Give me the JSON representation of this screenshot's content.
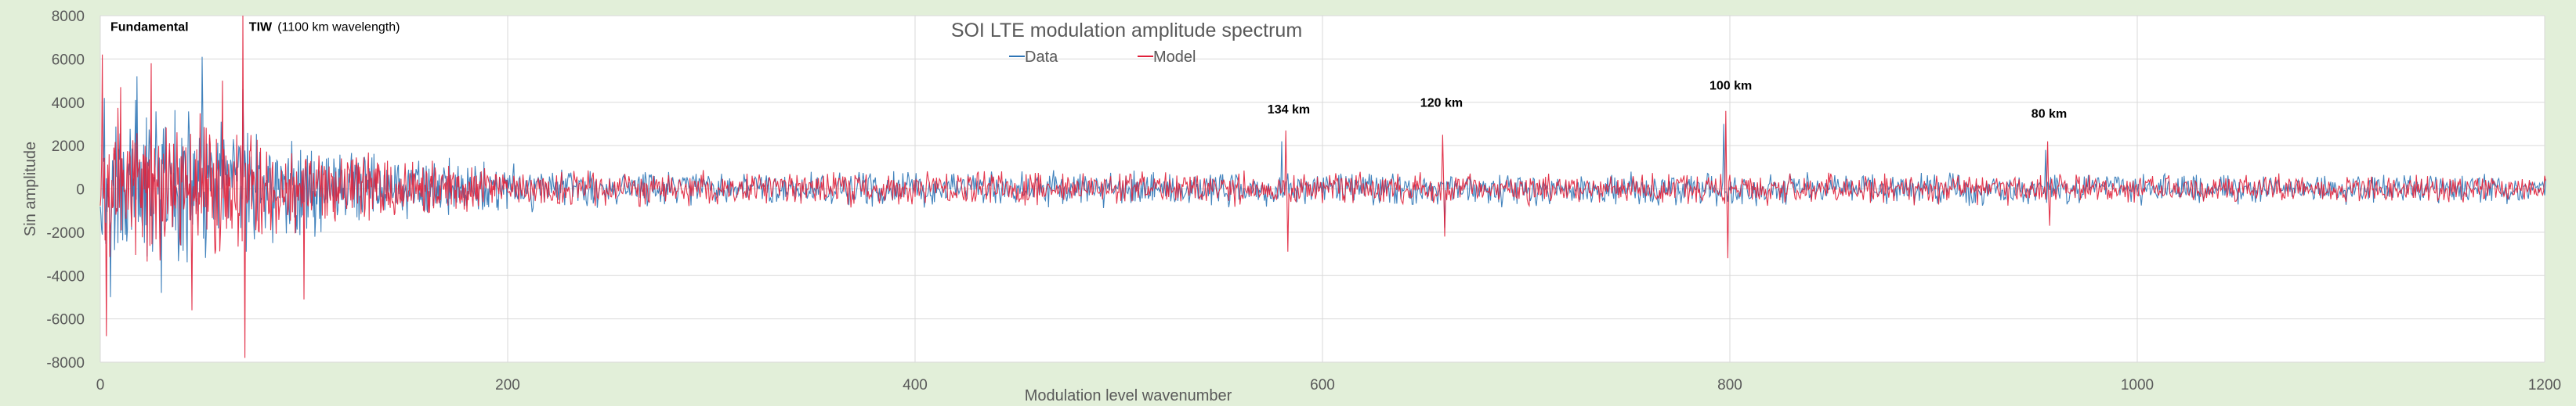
{
  "chart_data": {
    "type": "line",
    "title": "SOI LTE modulation amplitude spectrum",
    "xlabel": "Modulation level  wavenumber",
    "ylabel": "Sin amplitude",
    "xlim": [
      0,
      1200
    ],
    "ylim": [
      -8000,
      8000
    ],
    "xticks": [
      "0",
      "200",
      "400",
      "600",
      "800",
      "1000",
      "1200"
    ],
    "yticks": [
      "8000",
      "6000",
      "4000",
      "2000",
      "0",
      "-2000",
      "-4000",
      "-6000",
      "-8000"
    ],
    "grid": true,
    "legend_position": "top-center",
    "series": [
      {
        "name": "Data",
        "color": "#2e75b6",
        "envelope": [
          [
            0,
            4500
          ],
          [
            40,
            4000
          ],
          [
            70,
            3300
          ],
          [
            100,
            2500
          ],
          [
            140,
            1800
          ],
          [
            200,
            1200
          ],
          [
            300,
            1000
          ],
          [
            600,
            900
          ],
          [
            900,
            850
          ],
          [
            1200,
            750
          ]
        ],
        "peaks": [
          [
            2,
            4200
          ],
          [
            5,
            -5000
          ],
          [
            18,
            5200
          ],
          [
            30,
            -4800
          ],
          [
            50,
            6100
          ],
          [
            70,
            4600
          ],
          [
            580,
            2200
          ],
          [
            660,
            -1800
          ],
          [
            797,
            3000
          ],
          [
            955,
            1800
          ]
        ]
      },
      {
        "name": "Model",
        "color": "#e0203a",
        "envelope": [
          [
            0,
            4200
          ],
          [
            40,
            3800
          ],
          [
            70,
            3200
          ],
          [
            100,
            2300
          ],
          [
            140,
            1600
          ],
          [
            200,
            1100
          ],
          [
            300,
            950
          ],
          [
            600,
            850
          ],
          [
            900,
            800
          ],
          [
            1200,
            700
          ]
        ],
        "peaks": [
          [
            1,
            6200
          ],
          [
            3,
            -6800
          ],
          [
            10,
            4700
          ],
          [
            25,
            5800
          ],
          [
            45,
            -5600
          ],
          [
            60,
            5000
          ],
          [
            70,
            8000
          ],
          [
            71,
            -7800
          ],
          [
            100,
            -5100
          ],
          [
            582,
            2700
          ],
          [
            583,
            -2900
          ],
          [
            659,
            2500
          ],
          [
            660,
            -2200
          ],
          [
            798,
            3600
          ],
          [
            799,
            -3200
          ],
          [
            956,
            2200
          ],
          [
            957,
            -1700
          ]
        ]
      }
    ],
    "annotations": [
      {
        "text": "Fundamental",
        "x": 5,
        "y": 7800,
        "bold": true
      },
      {
        "text": "TIW",
        "x": 73,
        "y": 7800,
        "bold": true
      },
      {
        "text": "(1100 km wavelength)",
        "x": 87,
        "y": 7800,
        "bold": false
      },
      {
        "text": "134 km",
        "x": 573,
        "y": 4000,
        "bold": true
      },
      {
        "text": "120 km",
        "x": 648,
        "y": 4300,
        "bold": true
      },
      {
        "text": "100 km",
        "x": 790,
        "y": 5100,
        "bold": true
      },
      {
        "text": "80 km",
        "x": 948,
        "y": 3800,
        "bold": true
      }
    ],
    "background": "#ffffff",
    "outer_background": "#e2efd9"
  }
}
